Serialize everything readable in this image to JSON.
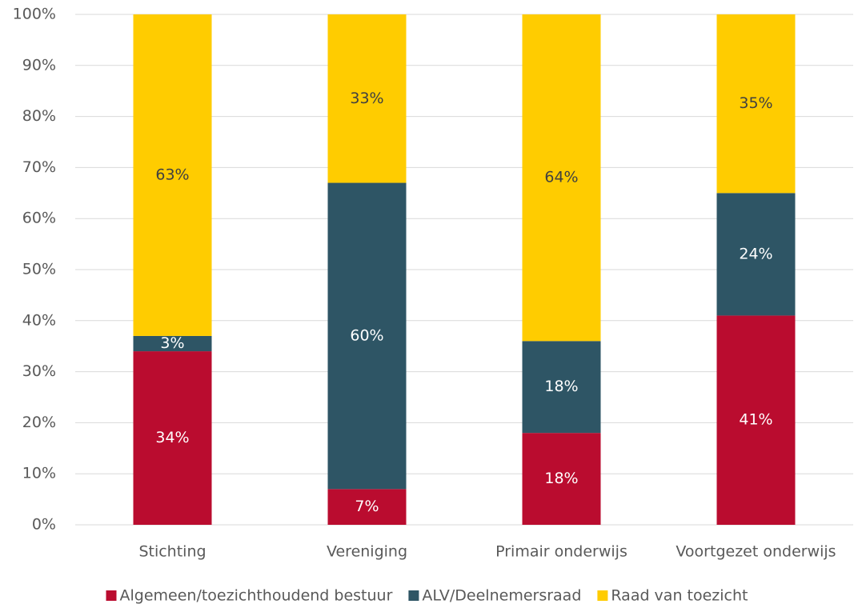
{
  "chart_data": {
    "type": "stacked_bar",
    "categories": [
      "Stichting",
      "Vereniging",
      "Primair onderwijs",
      "Voortgezet onderwijs"
    ],
    "series": [
      {
        "name": "Algemeen/toezichthoudend bestuur",
        "color": "#ba0c2f",
        "values": [
          34,
          7,
          18,
          41
        ],
        "value_labels": [
          "34%",
          "7%",
          "18%",
          "41%"
        ]
      },
      {
        "name": "ALV/Deelnemersraad",
        "color": "#2e5565",
        "values": [
          3,
          60,
          18,
          24
        ],
        "value_labels": [
          "3%",
          "60%",
          "18%",
          "24%"
        ]
      },
      {
        "name": "Raad van toezicht",
        "color": "#ffcc00",
        "values": [
          63,
          33,
          64,
          35
        ],
        "value_labels": [
          "63%",
          "33%",
          "64%",
          "35%"
        ]
      }
    ],
    "ylim": [
      0,
      100
    ],
    "yticks": [
      {
        "value": 0,
        "label": "0%"
      },
      {
        "value": 10,
        "label": "10%"
      },
      {
        "value": 20,
        "label": "20%"
      },
      {
        "value": 30,
        "label": "30%"
      },
      {
        "value": 40,
        "label": "40%"
      },
      {
        "value": 50,
        "label": "50%"
      },
      {
        "value": 60,
        "label": "60%"
      },
      {
        "value": 70,
        "label": "70%"
      },
      {
        "value": 80,
        "label": "80%"
      },
      {
        "value": 90,
        "label": "90%"
      },
      {
        "value": 100,
        "label": "100%"
      }
    ],
    "grid": true,
    "legend": "bottom"
  }
}
